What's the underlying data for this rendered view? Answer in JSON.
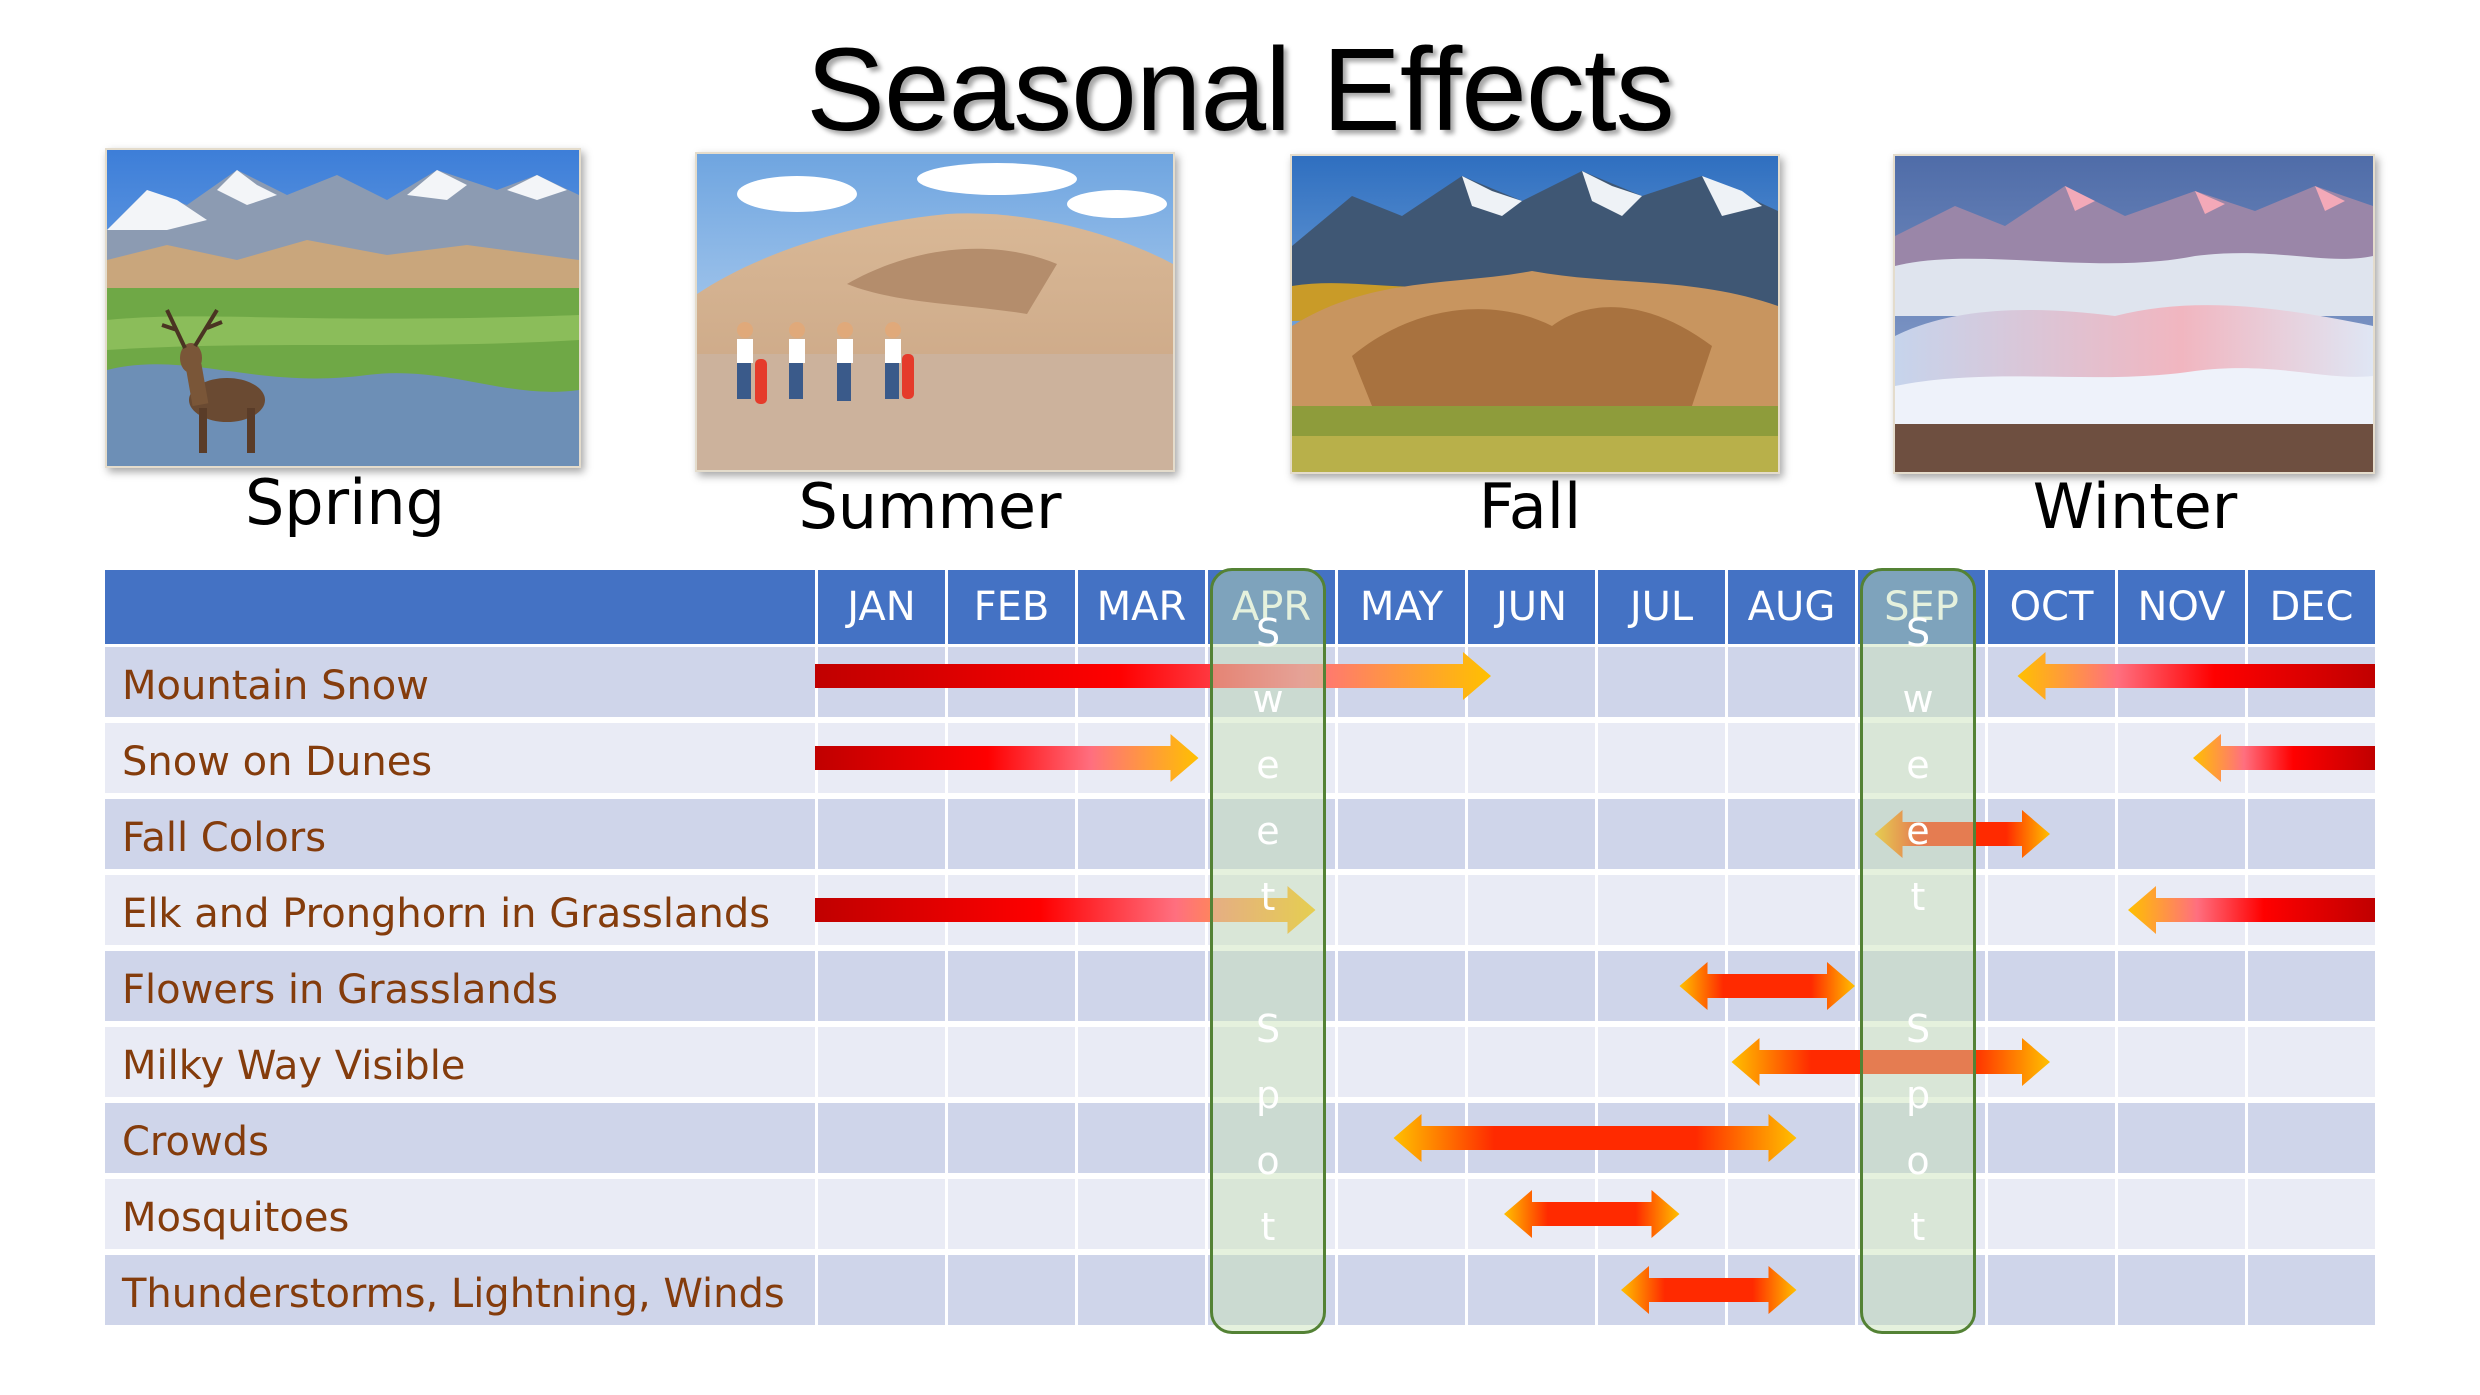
{
  "title": "Seasonal Effects",
  "seasons": [
    {
      "label": "Spring",
      "photo": "elk-grassland-dunes-photo"
    },
    {
      "label": "Summer",
      "photo": "hikers-on-dunes-photo"
    },
    {
      "label": "Fall",
      "photo": "autumn-mountains-dunes-photo"
    },
    {
      "label": "Winter",
      "photo": "snowy-dunes-sunrise-photo"
    }
  ],
  "months": [
    "JAN",
    "FEB",
    "MAR",
    "APR",
    "MAY",
    "JUN",
    "JUL",
    "AUG",
    "SEP",
    "OCT",
    "NOV",
    "DEC"
  ],
  "rows": [
    {
      "label": "Mountain Snow",
      "bars": [
        {
          "from": 0,
          "to": 5.2,
          "style": "right"
        },
        {
          "from": 9.25,
          "to": 12,
          "style": "left"
        }
      ]
    },
    {
      "label": "Snow on Dunes",
      "bars": [
        {
          "from": 0,
          "to": 2.95,
          "style": "right"
        },
        {
          "from": 10.6,
          "to": 12,
          "style": "left"
        }
      ]
    },
    {
      "label": "Fall Colors",
      "bars": [
        {
          "from": 8.15,
          "to": 9.5,
          "style": "both"
        }
      ]
    },
    {
      "label": "Elk and Pronghorn in Grasslands",
      "bars": [
        {
          "from": 0,
          "to": 3.85,
          "style": "right"
        },
        {
          "from": 10.1,
          "to": 12,
          "style": "left"
        }
      ]
    },
    {
      "label": "Flowers in Grasslands",
      "bars": [
        {
          "from": 6.65,
          "to": 8,
          "style": "both"
        }
      ]
    },
    {
      "label": "Milky Way Visible",
      "bars": [
        {
          "from": 7.05,
          "to": 9.5,
          "style": "both"
        }
      ]
    },
    {
      "label": "Crowds",
      "bars": [
        {
          "from": 4.45,
          "to": 7.55,
          "style": "both"
        }
      ]
    },
    {
      "label": "Mosquitoes",
      "bars": [
        {
          "from": 5.3,
          "to": 6.65,
          "style": "both"
        }
      ]
    },
    {
      "label": "Thunderstorms, Lightning, Winds",
      "bars": [
        {
          "from": 6.2,
          "to": 7.55,
          "style": "both"
        }
      ]
    }
  ],
  "sweet_spots": [
    {
      "month_index": 3,
      "letters": [
        "S",
        "w",
        "e",
        "e",
        "t",
        "",
        "S",
        "p",
        "o",
        "t"
      ]
    },
    {
      "month_index": 8,
      "letters": [
        "S",
        "w",
        "e",
        "e",
        "t",
        "",
        "S",
        "p",
        "o",
        "t"
      ]
    }
  ],
  "colors": {
    "header": "#4472c4",
    "row_odd": "#cfd5ea",
    "row_even": "#e9ebf5",
    "label": "#843c0c",
    "bar_dark": "#c00000",
    "bar_red": "#ff0000",
    "bar_orange": "#ffc000",
    "sweet_border": "#548235"
  }
}
